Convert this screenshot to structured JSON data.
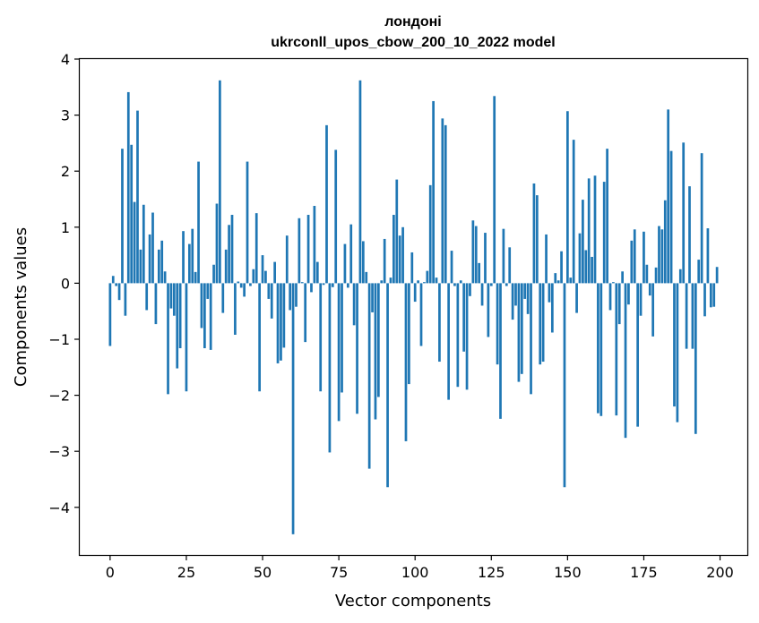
{
  "chart_data": {
    "type": "bar",
    "title": "лондоні",
    "subtitle": "ukrconll_upos_cbow_200_10_2022 model",
    "xlabel": "Vector components",
    "ylabel": "Components values",
    "xlim": [
      -9.95,
      208.95
    ],
    "ylim": [
      -4.85,
      4.0
    ],
    "xticks": [
      0,
      25,
      50,
      75,
      100,
      125,
      150,
      175,
      200
    ],
    "xtick_labels": [
      "0",
      "25",
      "50",
      "75",
      "100",
      "125",
      "150",
      "175",
      "200"
    ],
    "yticks": [
      -4,
      -3,
      -2,
      -1,
      0,
      1,
      2,
      3,
      4
    ],
    "ytick_labels": [
      "−4",
      "−3",
      "−2",
      "−1",
      "0",
      "1",
      "2",
      "3",
      "4"
    ],
    "grid": false,
    "bar_color": "#1f77b4",
    "values": [
      -1.12,
      0.13,
      -0.05,
      -0.3,
      2.4,
      -0.58,
      3.41,
      2.47,
      1.45,
      3.08,
      0.6,
      1.4,
      -0.48,
      0.87,
      1.26,
      -0.73,
      0.6,
      0.76,
      0.21,
      -1.98,
      -0.45,
      -0.58,
      -1.52,
      -1.16,
      0.93,
      -1.93,
      0.7,
      0.97,
      0.2,
      2.17,
      -0.8,
      -1.16,
      -0.28,
      -1.19,
      0.33,
      1.42,
      3.62,
      -0.53,
      0.6,
      1.04,
      1.22,
      -0.92,
      0.03,
      -0.08,
      -0.24,
      2.17,
      -0.05,
      0.25,
      1.25,
      -1.93,
      0.5,
      0.22,
      -0.28,
      -0.63,
      0.38,
      -1.43,
      -1.38,
      -1.15,
      0.85,
      -0.48,
      -4.48,
      -0.42,
      1.16,
      0.02,
      -1.05,
      1.22,
      -0.16,
      1.38,
      0.38,
      -1.93,
      -0.03,
      2.82,
      -3.02,
      -0.07,
      2.38,
      -2.46,
      -1.95,
      0.7,
      -0.08,
      1.05,
      -0.75,
      -2.33,
      3.62,
      0.75,
      0.2,
      -3.31,
      -0.52,
      -2.43,
      -2.03,
      0.05,
      0.79,
      -3.64,
      0.1,
      1.22,
      1.85,
      0.85,
      1.0,
      -2.82,
      -1.8,
      0.55,
      -0.33,
      0.05,
      -1.12,
      0.02,
      0.22,
      1.75,
      3.25,
      0.1,
      -1.4,
      2.94,
      2.82,
      -2.08,
      0.58,
      -0.05,
      -1.85,
      0.05,
      -1.22,
      -1.9,
      -0.23,
      1.12,
      1.02,
      0.36,
      -0.4,
      0.9,
      -0.96,
      -0.05,
      3.34,
      -1.45,
      -2.42,
      0.97,
      -0.05,
      0.64,
      -0.65,
      -0.4,
      -1.76,
      -1.62,
      -0.28,
      -0.55,
      -1.98,
      1.78,
      1.57,
      -1.45,
      -1.4,
      0.87,
      -0.34,
      -0.88,
      0.18,
      0.05,
      0.57,
      -3.64,
      3.07,
      0.1,
      2.56,
      -0.53,
      0.89,
      1.49,
      0.59,
      1.87,
      0.47,
      1.92,
      -2.32,
      -2.37,
      1.81,
      2.4,
      -0.48,
      0.02,
      -2.36,
      -0.73,
      0.21,
      -2.76,
      -0.38,
      0.76,
      0.96,
      -2.56,
      -0.58,
      0.92,
      0.33,
      -0.22,
      -0.95,
      0.28,
      1.02,
      0.96,
      1.48,
      3.1,
      2.36,
      -2.2,
      -2.48,
      0.25,
      2.51,
      -1.17,
      1.73,
      -1.17,
      -2.69,
      0.42,
      2.32,
      -0.59,
      0.98,
      -0.43,
      -0.42,
      0.29
    ]
  }
}
